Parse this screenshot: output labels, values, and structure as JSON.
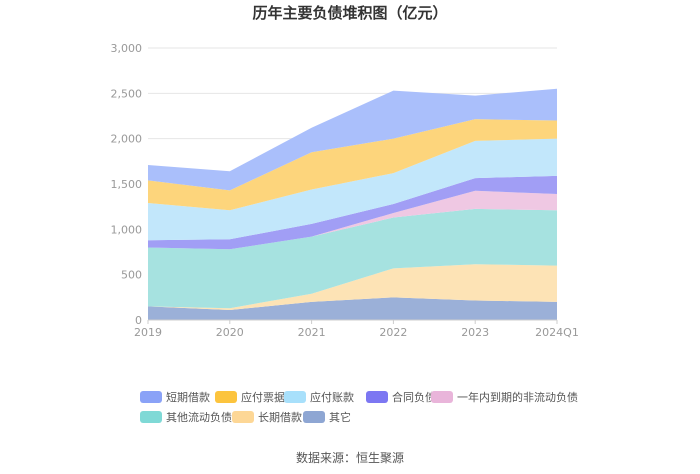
{
  "chart_data": {
    "type": "area",
    "stacked": true,
    "title": "历年主要负债堆积图（亿元）",
    "x": [
      "2019",
      "2020",
      "2021",
      "2022",
      "2023",
      "2024Q1"
    ],
    "ylim": [
      0,
      3000
    ],
    "yticks": [
      0,
      500,
      1000,
      1500,
      2000,
      2500,
      3000
    ],
    "ytick_labels": [
      "0",
      "500",
      "1,000",
      "1,500",
      "2,000",
      "2,500",
      "3,000"
    ],
    "grid": true,
    "legend_position": "bottom",
    "series": [
      {
        "name": "其它",
        "color": "#9bb0d8",
        "values": [
          150,
          110,
          200,
          250,
          215,
          200
        ]
      },
      {
        "name": "长期借款",
        "color": "#fde3b5",
        "values": [
          0,
          20,
          90,
          320,
          400,
          400
        ]
      },
      {
        "name": "其他流动负债",
        "color": "#a6e2e0",
        "values": [
          650,
          650,
          630,
          560,
          610,
          610
        ]
      },
      {
        "name": "一年内到期的非流动负债",
        "color": "#efc8e3",
        "values": [
          0,
          0,
          0,
          50,
          200,
          180
        ]
      },
      {
        "name": "合同负债",
        "color": "#a19ef5",
        "values": [
          80,
          110,
          140,
          100,
          140,
          200
        ]
      },
      {
        "name": "应付账款",
        "color": "#c2e7fb",
        "values": [
          410,
          320,
          380,
          340,
          410,
          410
        ]
      },
      {
        "name": "应付票据",
        "color": "#fdd57c",
        "values": [
          250,
          220,
          410,
          380,
          240,
          200
        ]
      },
      {
        "name": "短期借款",
        "color": "#aabffb",
        "values": [
          170,
          210,
          270,
          530,
          260,
          350
        ]
      }
    ],
    "legend_order": [
      "短期借款",
      "应付票据",
      "应付账款",
      "合同负债",
      "一年内到期的非流动负债",
      "其他流动负债",
      "长期借款",
      "其它"
    ],
    "legend_swatch_colors": {
      "短期借款": "#8aa2f7",
      "应付票据": "#fcc43e",
      "应付账款": "#a8e0fb",
      "合同负债": "#7c77f2",
      "一年内到期的非流动负债": "#e9b5da",
      "其他流动负债": "#7fd9d6",
      "长期借款": "#fdd796",
      "其它": "#8ea6d3"
    }
  },
  "source_text": "数据来源：恒生聚源"
}
